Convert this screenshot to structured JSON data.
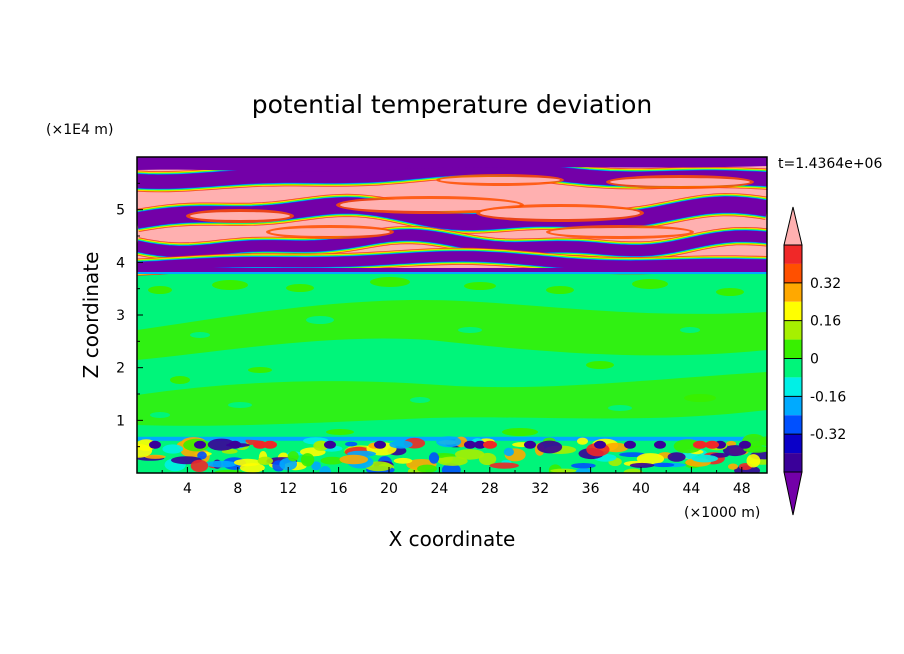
{
  "chart_data": {
    "type": "heatmap",
    "title": "potential temperature deviation",
    "xlabel": "X coordinate",
    "ylabel": "Z coordinate",
    "x_unit": "(×1000 m)",
    "y_unit": "(×1E4 m)",
    "time_label": "t=1.4364e+06",
    "xlim": [
      0,
      50
    ],
    "ylim": [
      0,
      6
    ],
    "x_ticks": [
      4,
      8,
      12,
      16,
      20,
      24,
      28,
      32,
      36,
      40,
      44,
      48
    ],
    "y_ticks": [
      1,
      2,
      3,
      4,
      5
    ],
    "colorbar": {
      "levels": [
        -0.48,
        -0.4,
        -0.32,
        -0.24,
        -0.16,
        -0.08,
        0,
        0.08,
        0.16,
        0.24,
        0.32,
        0.4,
        0.48
      ],
      "colors": [
        "#7300a8",
        "#3a0099",
        "#0a00c8",
        "#0050ff",
        "#00aaff",
        "#00f0e6",
        "#00f57a",
        "#38f000",
        "#a6f000",
        "#ffff00",
        "#ffa800",
        "#ff5000",
        "#f02828",
        "#ffb0b0"
      ],
      "tick_labels": [
        "0.32",
        "0.16",
        "0",
        "-0.16",
        "-0.32"
      ],
      "tick_values": [
        0.32,
        0.16,
        0,
        -0.16,
        -0.32
      ]
    },
    "fields": {
      "upper_pattern": [
        "#7300a8",
        "#ffb0b0",
        "#ffb0b0",
        "#7300a8",
        "#ffb0b0",
        "#7300a8",
        "#ffb0b0",
        "#7300a8",
        "#ffb0b0"
      ],
      "upper_region_z": [
        3.8,
        6.0
      ],
      "middle_region_z": [
        0.65,
        3.8
      ],
      "lower_region_z": [
        0,
        0.65
      ]
    }
  }
}
